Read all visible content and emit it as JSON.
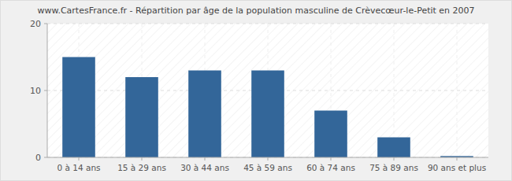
{
  "chart_data": {
    "type": "bar",
    "title": "www.CartesFrance.fr - Répartition par âge de la population masculine de Crèvecœur-le-Petit en 2007",
    "categories": [
      "0 à 14 ans",
      "15 à 29 ans",
      "30 à 44 ans",
      "45 à 59 ans",
      "60 à 74 ans",
      "75 à 89 ans",
      "90 ans et plus"
    ],
    "values": [
      15,
      12,
      13,
      13,
      7,
      3,
      0.2
    ],
    "color": "#336699",
    "ylim": [
      0,
      20
    ],
    "yticks": [
      0,
      10,
      20
    ],
    "grid": true
  }
}
